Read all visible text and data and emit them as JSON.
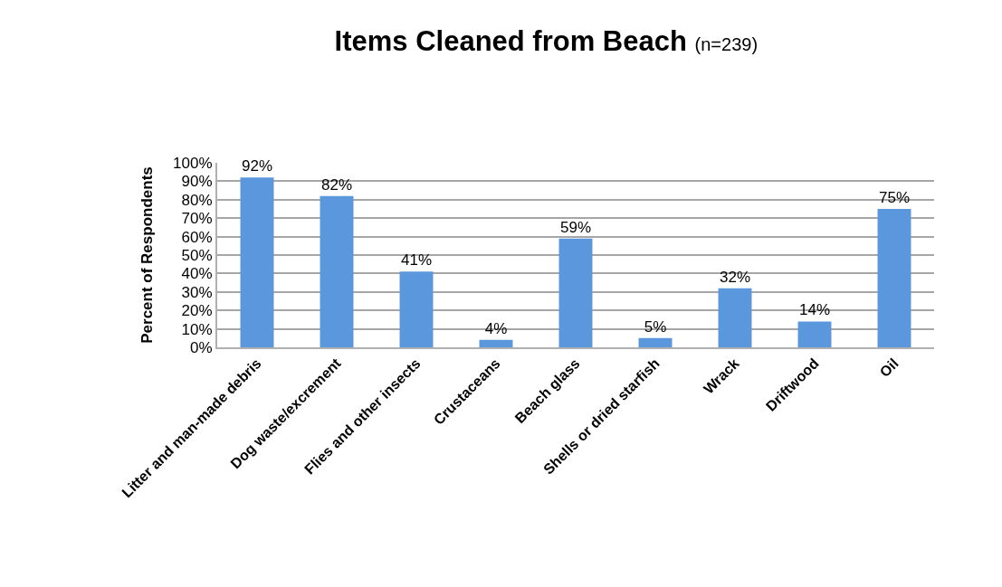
{
  "chart_data": {
    "type": "bar",
    "title": "Items Cleaned from Beach",
    "subtitle": "(n=239)",
    "ylabel": "Percent of Respondents",
    "categories": [
      "Litter and man-made debris",
      "Dog waste/excrement",
      "Flies and other insects",
      "Crustaceans",
      "Beach glass",
      "Shells or dried starfish",
      "Wrack",
      "Driftwood",
      "Oil"
    ],
    "values": [
      92,
      82,
      41,
      4,
      59,
      5,
      32,
      14,
      75
    ],
    "value_labels": [
      "92%",
      "82%",
      "41%",
      "4%",
      "59%",
      "5%",
      "32%",
      "14%",
      "75%"
    ],
    "color": "#5b97dc",
    "ylim": [
      0,
      100
    ],
    "yticks": [
      {
        "value": 0,
        "label": "0%"
      },
      {
        "value": 10,
        "label": "10%"
      },
      {
        "value": 20,
        "label": "20%"
      },
      {
        "value": 30,
        "label": "30%"
      },
      {
        "value": 40,
        "label": "40%"
      },
      {
        "value": 50,
        "label": "50%"
      },
      {
        "value": 60,
        "label": "60%"
      },
      {
        "value": 70,
        "label": "70%"
      },
      {
        "value": 80,
        "label": "80%"
      },
      {
        "value": 90,
        "label": "90%"
      },
      {
        "value": 100,
        "label": "100%"
      }
    ],
    "grid": "y"
  }
}
